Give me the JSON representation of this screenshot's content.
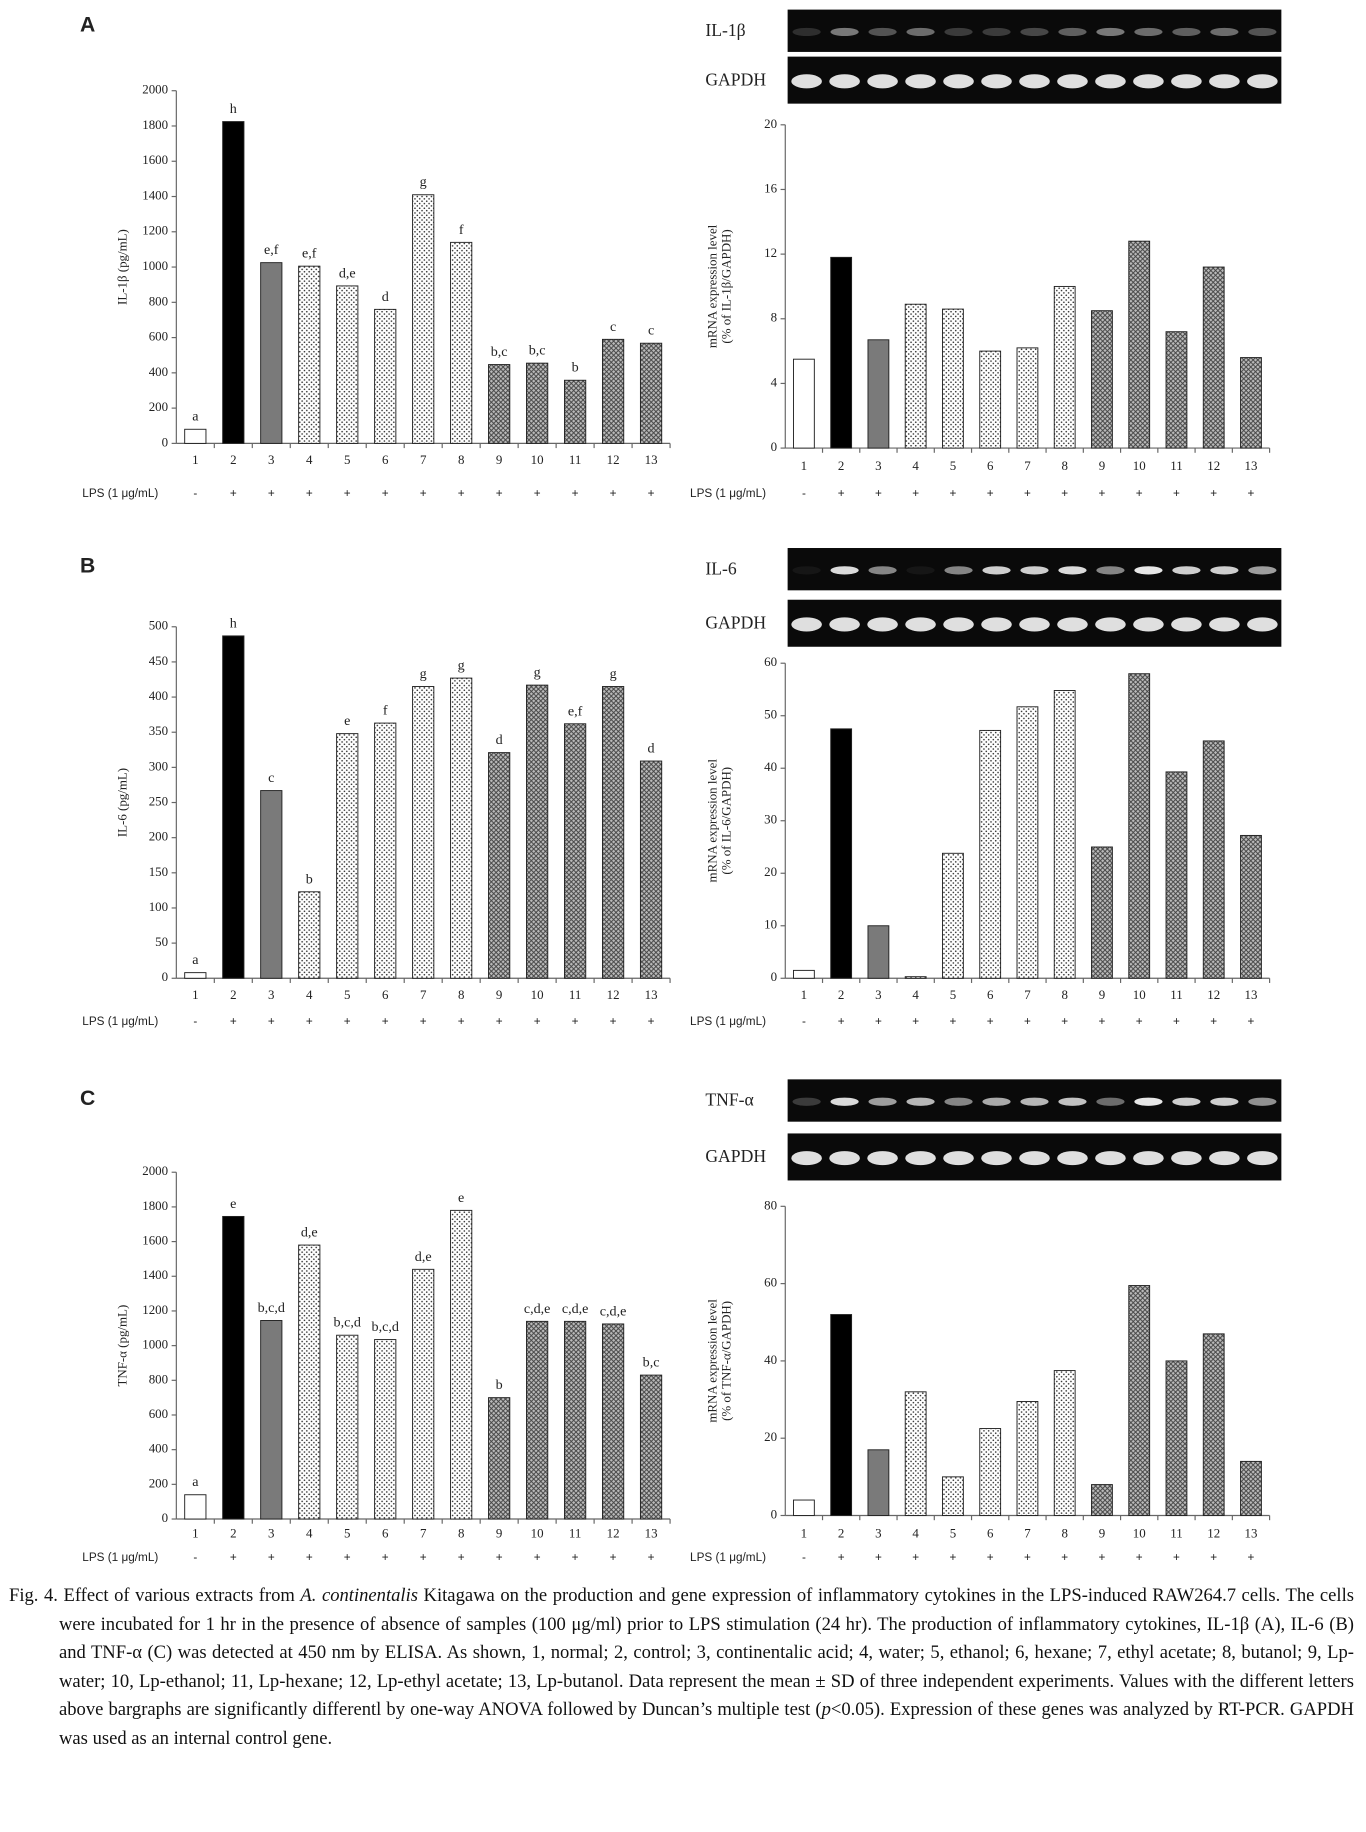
{
  "panels": [
    {
      "letter": "A",
      "gene": "IL-1β",
      "reference": "GAPDH"
    },
    {
      "letter": "B",
      "gene": "IL-6",
      "reference": "GAPDH"
    },
    {
      "letter": "C",
      "gene": "TNF-α",
      "reference": "GAPDH"
    }
  ],
  "chart_data": [
    {
      "type": "bar",
      "ylabel": [
        "IL-1β (pg/mL)"
      ],
      "categories": [
        "1",
        "2",
        "3",
        "4",
        "5",
        "6",
        "7",
        "8",
        "9",
        "10",
        "11",
        "12",
        "13"
      ],
      "values": [
        80,
        1825,
        1025,
        1005,
        893,
        760,
        1410,
        1140,
        447,
        455,
        358,
        590,
        568
      ],
      "annotations": [
        "a",
        "h",
        "e,f",
        "e,f",
        "d,e",
        "d",
        "g",
        "f",
        "b,c",
        "b,c",
        "b",
        "c",
        "c"
      ],
      "ylim": [
        0,
        2000
      ],
      "yticks": [
        0,
        200,
        400,
        600,
        800,
        1000,
        1200,
        1400,
        1600,
        1800,
        2000
      ],
      "treatment_label": "LPS (1 μg/mL)",
      "treatment": [
        "-",
        "+",
        "+",
        "+",
        "+",
        "+",
        "+",
        "+",
        "+",
        "+",
        "+",
        "+",
        "+"
      ],
      "bar_fills": [
        "white",
        "black",
        "gray",
        "dots",
        "dots",
        "dots",
        "dots",
        "dots",
        "cross",
        "cross",
        "cross",
        "cross",
        "cross"
      ]
    },
    {
      "type": "bar",
      "ylabel": [
        "mRNA expression level",
        "(% of IL-1β/GAPDH)"
      ],
      "categories": [
        "1",
        "2",
        "3",
        "4",
        "5",
        "6",
        "7",
        "8",
        "9",
        "10",
        "11",
        "12",
        "13"
      ],
      "values": [
        5.5,
        11.8,
        6.7,
        8.9,
        8.6,
        6.0,
        6.2,
        10.0,
        8.5,
        12.8,
        7.2,
        11.2,
        5.6
      ],
      "ylim": [
        0,
        20
      ],
      "yticks": [
        0,
        4,
        8,
        12,
        16,
        20
      ],
      "treatment_label": "LPS (1 μg/mL)",
      "treatment": [
        "-",
        "+",
        "+",
        "+",
        "+",
        "+",
        "+",
        "+",
        "+",
        "+",
        "+",
        "+",
        "+"
      ],
      "bar_fills": [
        "white",
        "black",
        "gray",
        "dots",
        "dots",
        "dots",
        "dots",
        "dots",
        "cross",
        "cross",
        "cross",
        "cross",
        "cross"
      ]
    },
    {
      "type": "bar",
      "ylabel": [
        "IL-6 (pg/mL)"
      ],
      "categories": [
        "1",
        "2",
        "3",
        "4",
        "5",
        "6",
        "7",
        "8",
        "9",
        "10",
        "11",
        "12",
        "13"
      ],
      "values": [
        8,
        487,
        267,
        123,
        348,
        363,
        415,
        427,
        321,
        417,
        362,
        415,
        309
      ],
      "annotations": [
        "a",
        "h",
        "c",
        "b",
        "e",
        "f",
        "g",
        "g",
        "d",
        "g",
        "e,f",
        "g",
        "d"
      ],
      "ylim": [
        0,
        500
      ],
      "yticks": [
        0,
        50,
        100,
        150,
        200,
        250,
        300,
        350,
        400,
        450,
        500
      ],
      "treatment_label": "LPS (1 μg/mL)",
      "treatment": [
        "-",
        "+",
        "+",
        "+",
        "+",
        "+",
        "+",
        "+",
        "+",
        "+",
        "+",
        "+",
        "+"
      ],
      "bar_fills": [
        "white",
        "black",
        "gray",
        "dots",
        "dots",
        "dots",
        "dots",
        "dots",
        "cross",
        "cross",
        "cross",
        "cross",
        "cross"
      ]
    },
    {
      "type": "bar",
      "ylabel": [
        "mRNA expression level",
        "(% of IL-6/GAPDH)"
      ],
      "categories": [
        "1",
        "2",
        "3",
        "4",
        "5",
        "6",
        "7",
        "8",
        "9",
        "10",
        "11",
        "12",
        "13"
      ],
      "values": [
        1.5,
        47.5,
        10,
        0.3,
        23.8,
        47.2,
        51.7,
        54.8,
        25,
        58,
        39.3,
        45.2,
        27.2
      ],
      "ylim": [
        0,
        60
      ],
      "yticks": [
        0,
        10,
        20,
        30,
        40,
        50,
        60
      ],
      "treatment_label": "LPS (1 μg/mL)",
      "treatment": [
        "-",
        "+",
        "+",
        "+",
        "+",
        "+",
        "+",
        "+",
        "+",
        "+",
        "+",
        "+",
        "+"
      ],
      "bar_fills": [
        "white",
        "black",
        "gray",
        "dots",
        "dots",
        "dots",
        "dots",
        "dots",
        "cross",
        "cross",
        "cross",
        "cross",
        "cross"
      ]
    },
    {
      "type": "bar",
      "ylabel": [
        "TNF-α (pg/mL)"
      ],
      "categories": [
        "1",
        "2",
        "3",
        "4",
        "5",
        "6",
        "7",
        "8",
        "9",
        "10",
        "11",
        "12",
        "13"
      ],
      "values": [
        140,
        1745,
        1145,
        1580,
        1060,
        1035,
        1440,
        1780,
        700,
        1140,
        1140,
        1125,
        830
      ],
      "annotations": [
        "a",
        "e",
        "b,c,d",
        "d,e",
        "b,c,d",
        "b,c,d",
        "d,e",
        "e",
        "b",
        "c,d,e",
        "c,d,e",
        "c,d,e",
        "b,c"
      ],
      "ylim": [
        0,
        2000
      ],
      "yticks": [
        0,
        200,
        400,
        600,
        800,
        1000,
        1200,
        1400,
        1600,
        1800,
        2000
      ],
      "treatment_label": "LPS (1 μg/mL)",
      "treatment": [
        "-",
        "+",
        "+",
        "+",
        "+",
        "+",
        "+",
        "+",
        "+",
        "+",
        "+",
        "+",
        "+"
      ],
      "bar_fills": [
        "white",
        "black",
        "gray",
        "dots",
        "dots",
        "dots",
        "dots",
        "dots",
        "cross",
        "cross",
        "cross",
        "cross",
        "cross"
      ]
    },
    {
      "type": "bar",
      "ylabel": [
        "mRNA expression level",
        "(% of TNF-α/GAPDH)"
      ],
      "categories": [
        "1",
        "2",
        "3",
        "4",
        "5",
        "6",
        "7",
        "8",
        "9",
        "10",
        "11",
        "12",
        "13"
      ],
      "values": [
        4,
        52,
        17,
        32,
        10,
        22.5,
        29.5,
        37.5,
        8,
        59.5,
        40,
        47,
        14
      ],
      "ylim": [
        0,
        80
      ],
      "yticks": [
        0,
        20,
        40,
        60,
        80
      ],
      "treatment_label": "LPS (1 μg/mL)",
      "treatment": [
        "-",
        "+",
        "+",
        "+",
        "+",
        "+",
        "+",
        "+",
        "+",
        "+",
        "+",
        "+",
        "+"
      ],
      "bar_fills": [
        "white",
        "black",
        "gray",
        "dots",
        "dots",
        "dots",
        "dots",
        "dots",
        "cross",
        "cross",
        "cross",
        "cross",
        "cross"
      ]
    }
  ],
  "caption": [
    {
      "text": "Fig. 4. Effect of various extracts from "
    },
    {
      "text": "A. continentalis",
      "italic": true
    },
    {
      "text": " Kitagawa on the production and gene expression of inflammatory cytokines in the LPS-induced RAW264.7 cells. The cells were incubated for 1 hr in the presence of absence of samples (100 μg/ml) prior to LPS stimulation (24 hr). The production of inflammatory cytokines, IL-1β (A), IL-6 (B) and TNF-α (C) was detected at 450 nm by ELISA. As shown, 1, normal; 2, control; 3, continentalic acid; 4, water; 5, ethanol; 6, hexane; 7, ethyl acetate; 8, butanol; 9, Lp-water; 10, Lp-ethanol; 11, Lp-hexane; 12, Lp-ethyl acetate; 13, Lp-butanol. Data represent the mean ± SD of three independent experiments. Values with the different letters above bargraphs are significantly differentl by one-way ANOVA followed by Duncan’s multiple test ("
    },
    {
      "text": "p",
      "italic": true
    },
    {
      "text": "<0.05). Expression of these genes was analyzed by RT-PCR. GAPDH was used as an internal control gene."
    }
  ]
}
